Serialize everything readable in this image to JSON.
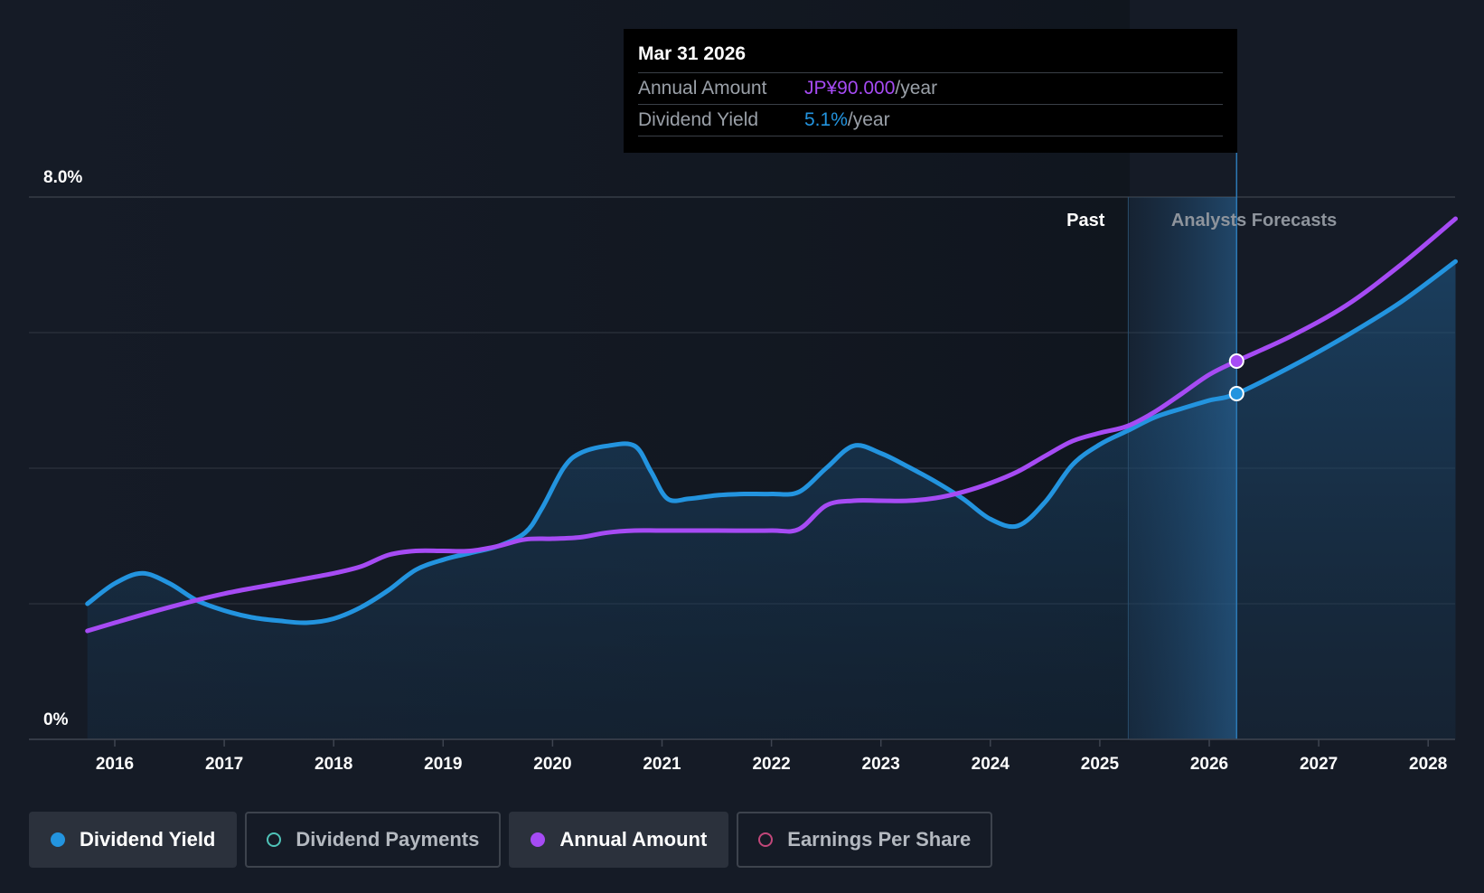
{
  "tooltip": {
    "date": "Mar 31 2026",
    "rows": [
      {
        "label": "Annual Amount",
        "value": "JP¥90.000",
        "unit": "/year"
      },
      {
        "label": "Dividend Yield",
        "value": "5.1%",
        "unit": "/year"
      }
    ]
  },
  "legend": [
    {
      "label": "Dividend Yield",
      "color": "#2394df",
      "active": true
    },
    {
      "label": "Dividend Payments",
      "color": "#4fc3b8",
      "active": false
    },
    {
      "label": "Annual Amount",
      "color": "#a64bf4",
      "active": true
    },
    {
      "label": "Earnings Per Share",
      "color": "#c2477a",
      "active": false
    }
  ],
  "chart_data": {
    "type": "line",
    "y_axis_labels": [
      "8.0%",
      "0%"
    ],
    "ylim": [
      0,
      8
    ],
    "grid": true,
    "x_ticks": [
      "2016",
      "2017",
      "2018",
      "2019",
      "2020",
      "2021",
      "2022",
      "2023",
      "2024",
      "2025",
      "2026",
      "2027",
      "2028"
    ],
    "past_label": "Past",
    "forecast_label": "Analysts Forecasts",
    "forecast_start": 2025.26,
    "highlight_x": 2026.25,
    "series": [
      {
        "name": "Dividend Yield",
        "color": "#2394df",
        "fill": true,
        "points": [
          [
            2015.75,
            2.0
          ],
          [
            2016.0,
            2.3
          ],
          [
            2016.25,
            2.45
          ],
          [
            2016.5,
            2.3
          ],
          [
            2016.75,
            2.05
          ],
          [
            2017.0,
            1.9
          ],
          [
            2017.25,
            1.8
          ],
          [
            2017.5,
            1.75
          ],
          [
            2017.75,
            1.72
          ],
          [
            2018.0,
            1.78
          ],
          [
            2018.25,
            1.95
          ],
          [
            2018.5,
            2.2
          ],
          [
            2018.75,
            2.5
          ],
          [
            2019.0,
            2.65
          ],
          [
            2019.25,
            2.75
          ],
          [
            2019.5,
            2.85
          ],
          [
            2019.75,
            3.05
          ],
          [
            2019.9,
            3.4
          ],
          [
            2020.1,
            4.0
          ],
          [
            2020.25,
            4.22
          ],
          [
            2020.5,
            4.33
          ],
          [
            2020.75,
            4.33
          ],
          [
            2020.9,
            3.95
          ],
          [
            2021.05,
            3.55
          ],
          [
            2021.25,
            3.55
          ],
          [
            2021.5,
            3.6
          ],
          [
            2021.75,
            3.62
          ],
          [
            2022.0,
            3.62
          ],
          [
            2022.25,
            3.65
          ],
          [
            2022.5,
            4.0
          ],
          [
            2022.75,
            4.33
          ],
          [
            2023.0,
            4.22
          ],
          [
            2023.25,
            4.02
          ],
          [
            2023.5,
            3.8
          ],
          [
            2023.75,
            3.55
          ],
          [
            2024.0,
            3.25
          ],
          [
            2024.25,
            3.15
          ],
          [
            2024.5,
            3.5
          ],
          [
            2024.75,
            4.05
          ],
          [
            2025.0,
            4.35
          ],
          [
            2025.25,
            4.55
          ],
          [
            2025.5,
            4.75
          ],
          [
            2025.75,
            4.88
          ],
          [
            2026.0,
            5.0
          ],
          [
            2026.25,
            5.1
          ],
          [
            2026.75,
            5.5
          ],
          [
            2027.25,
            5.95
          ],
          [
            2027.75,
            6.45
          ],
          [
            2028.25,
            7.05
          ]
        ]
      },
      {
        "name": "Annual Amount",
        "color": "#a64bf4",
        "fill": false,
        "points": [
          [
            2015.75,
            1.6
          ],
          [
            2016.0,
            1.72
          ],
          [
            2016.5,
            1.95
          ],
          [
            2017.0,
            2.15
          ],
          [
            2017.5,
            2.3
          ],
          [
            2018.0,
            2.45
          ],
          [
            2018.25,
            2.55
          ],
          [
            2018.5,
            2.72
          ],
          [
            2018.75,
            2.78
          ],
          [
            2019.0,
            2.78
          ],
          [
            2019.25,
            2.78
          ],
          [
            2019.5,
            2.85
          ],
          [
            2019.75,
            2.95
          ],
          [
            2020.0,
            2.96
          ],
          [
            2020.25,
            2.98
          ],
          [
            2020.5,
            3.05
          ],
          [
            2020.75,
            3.08
          ],
          [
            2021.0,
            3.08
          ],
          [
            2021.5,
            3.08
          ],
          [
            2022.0,
            3.08
          ],
          [
            2022.25,
            3.1
          ],
          [
            2022.5,
            3.45
          ],
          [
            2022.75,
            3.52
          ],
          [
            2023.0,
            3.52
          ],
          [
            2023.25,
            3.52
          ],
          [
            2023.5,
            3.56
          ],
          [
            2023.75,
            3.65
          ],
          [
            2024.0,
            3.78
          ],
          [
            2024.25,
            3.95
          ],
          [
            2024.5,
            4.18
          ],
          [
            2024.75,
            4.4
          ],
          [
            2025.0,
            4.52
          ],
          [
            2025.25,
            4.62
          ],
          [
            2025.5,
            4.83
          ],
          [
            2025.75,
            5.1
          ],
          [
            2026.0,
            5.38
          ],
          [
            2026.25,
            5.58
          ],
          [
            2026.75,
            5.95
          ],
          [
            2027.25,
            6.4
          ],
          [
            2027.75,
            7.0
          ],
          [
            2028.25,
            7.68
          ]
        ]
      }
    ]
  }
}
